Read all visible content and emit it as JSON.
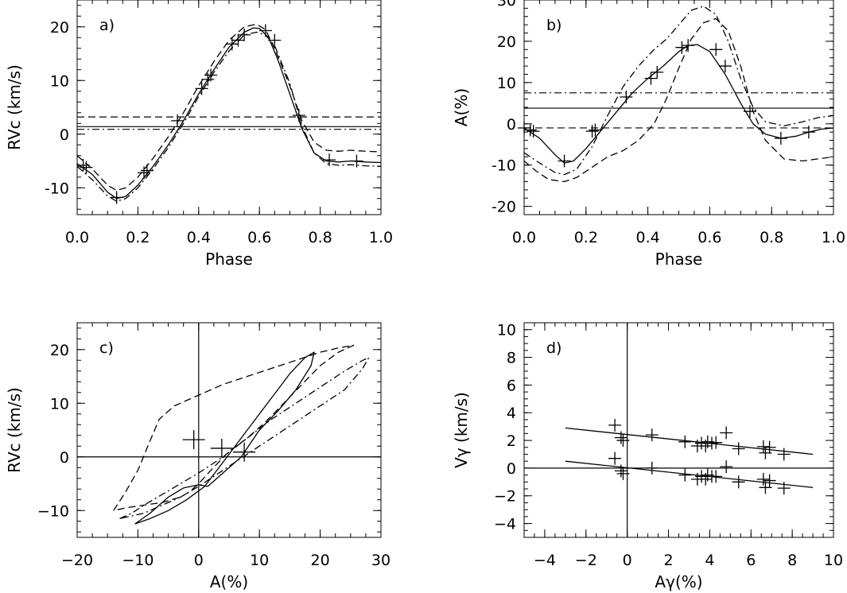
{
  "chart_data": [
    {
      "panel": "a)",
      "type": "line",
      "xlabel": "Phase",
      "ylabel": "RVc (km/s)",
      "xlim": [
        0.0,
        1.0
      ],
      "ylim": [
        -15,
        25
      ],
      "xticks": [
        "0.0",
        "0.2",
        "0.4",
        "0.6",
        "0.8",
        "1.0"
      ],
      "xtick_values": [
        0,
        0.2,
        0.4,
        0.6,
        0.8,
        1.0
      ],
      "yticks": [
        "-10",
        "0",
        "10",
        "20"
      ],
      "ytick_values": [
        -10,
        0,
        10,
        20
      ],
      "series": [
        {
          "style": "solid",
          "x": [
            0.0,
            0.05,
            0.1,
            0.13,
            0.16,
            0.2,
            0.25,
            0.3,
            0.35,
            0.4,
            0.45,
            0.5,
            0.55,
            0.58,
            0.6,
            0.63,
            0.66,
            0.7,
            0.74,
            0.78,
            0.82,
            0.86,
            0.9,
            0.95,
            1.0
          ],
          "y": [
            -5.5,
            -7.5,
            -10.8,
            -12,
            -11.6,
            -9.5,
            -6,
            -2,
            2.5,
            7.5,
            12,
            16.2,
            19,
            19.8,
            19.7,
            18,
            14,
            7.5,
            1,
            -3.5,
            -5,
            -5.2,
            -5,
            -5.2,
            -5.3
          ]
        },
        {
          "style": "dashed",
          "x": [
            0.0,
            0.05,
            0.1,
            0.13,
            0.16,
            0.2,
            0.25,
            0.3,
            0.35,
            0.4,
            0.45,
            0.5,
            0.55,
            0.59,
            0.62,
            0.65,
            0.7,
            0.74,
            0.78,
            0.82,
            0.86,
            0.9,
            0.95,
            1.0
          ],
          "y": [
            -4,
            -6.5,
            -9.5,
            -10.5,
            -10,
            -8,
            -4.5,
            -0.5,
            4,
            9,
            13.5,
            17.5,
            20,
            20.5,
            19.5,
            16,
            9,
            2.5,
            -1.5,
            -3,
            -3.2,
            -3,
            -3.2,
            -3.3
          ]
        },
        {
          "style": "dashdot",
          "x": [
            0.0,
            0.05,
            0.1,
            0.13,
            0.16,
            0.2,
            0.25,
            0.3,
            0.35,
            0.4,
            0.45,
            0.5,
            0.55,
            0.59,
            0.62,
            0.65,
            0.7,
            0.74,
            0.78,
            0.82,
            0.86,
            0.9,
            0.95,
            1.0
          ],
          "y": [
            -6,
            -8.5,
            -11.5,
            -12.5,
            -12,
            -10,
            -6.5,
            -2.5,
            2,
            7,
            11.5,
            15.5,
            18.5,
            19,
            18.5,
            16.5,
            9.5,
            1.5,
            -3.5,
            -5.5,
            -5.8,
            -5.7,
            -5.9,
            -6
          ]
        },
        {
          "style": "hline-dashed",
          "y": 3.2
        },
        {
          "style": "hline-solid",
          "y": 1.4
        },
        {
          "style": "hline-dashdot",
          "y": 0.9
        }
      ],
      "points": [
        {
          "x": 0.02,
          "y": -5.8
        },
        {
          "x": 0.03,
          "y": -6.2
        },
        {
          "x": 0.13,
          "y": -11.8
        },
        {
          "x": 0.22,
          "y": -7.2
        },
        {
          "x": 0.23,
          "y": -6.8
        },
        {
          "x": 0.33,
          "y": 2.5
        },
        {
          "x": 0.41,
          "y": 8.5
        },
        {
          "x": 0.43,
          "y": 10.2
        },
        {
          "x": 0.44,
          "y": 11
        },
        {
          "x": 0.51,
          "y": 16.8
        },
        {
          "x": 0.53,
          "y": 17.5
        },
        {
          "x": 0.55,
          "y": 18.5
        },
        {
          "x": 0.62,
          "y": 19.3
        },
        {
          "x": 0.65,
          "y": 17.5
        },
        {
          "x": 0.73,
          "y": 3.5
        },
        {
          "x": 0.83,
          "y": -4.8
        },
        {
          "x": 0.92,
          "y": -5
        }
      ]
    },
    {
      "panel": "b)",
      "type": "line",
      "xlabel": "Phase",
      "ylabel": "A(%)",
      "xlim": [
        0.0,
        1.0
      ],
      "ylim": [
        -22,
        30
      ],
      "xticks": [
        "0.0",
        "0.2",
        "0.4",
        "0.6",
        "0.8",
        "1.0"
      ],
      "xtick_values": [
        0,
        0.2,
        0.4,
        0.6,
        0.8,
        1.0
      ],
      "yticks": [
        "-20",
        "-10",
        "0",
        "10",
        "20",
        "30"
      ],
      "ytick_values": [
        -20,
        -10,
        0,
        10,
        20,
        30
      ],
      "series": [
        {
          "style": "solid",
          "x": [
            0.0,
            0.05,
            0.1,
            0.13,
            0.16,
            0.2,
            0.25,
            0.3,
            0.35,
            0.4,
            0.45,
            0.5,
            0.53,
            0.56,
            0.6,
            0.65,
            0.7,
            0.74,
            0.78,
            0.83,
            0.88,
            0.92,
            0.96,
            1.0
          ],
          "y": [
            -1,
            -3.5,
            -7.5,
            -9.5,
            -9,
            -6,
            -1.5,
            3,
            7.5,
            11,
            14,
            17.5,
            19,
            19.2,
            17.5,
            12,
            5,
            0,
            -2.5,
            -3.5,
            -3,
            -2,
            -1.3,
            -1
          ]
        },
        {
          "style": "dashed",
          "x": [
            0.0,
            0.04,
            0.08,
            0.13,
            0.17,
            0.22,
            0.27,
            0.32,
            0.37,
            0.42,
            0.46,
            0.5,
            0.54,
            0.58,
            0.62,
            0.66,
            0.7,
            0.74,
            0.78,
            0.84,
            0.9,
            0.95,
            1.0
          ],
          "y": [
            -9,
            -11.5,
            -13.5,
            -14,
            -13,
            -10.5,
            -8,
            -6.5,
            -4,
            0,
            6,
            13.5,
            20.5,
            24.5,
            25.5,
            22.5,
            14,
            3,
            -4,
            -8.5,
            -9,
            -8.5,
            -8
          ]
        },
        {
          "style": "dashdot",
          "x": [
            0.0,
            0.05,
            0.1,
            0.13,
            0.17,
            0.22,
            0.27,
            0.32,
            0.37,
            0.42,
            0.46,
            0.5,
            0.54,
            0.58,
            0.62,
            0.66,
            0.7,
            0.74,
            0.78,
            0.84,
            0.9,
            0.95,
            1.0
          ],
          "y": [
            -7,
            -9.5,
            -11.8,
            -12.3,
            -11,
            -5.5,
            2,
            9,
            14,
            18,
            20.5,
            24,
            27.5,
            28.5,
            26.5,
            20,
            11,
            4,
            0.5,
            -0.5,
            0.5,
            1.5,
            2
          ]
        },
        {
          "style": "hline-dashdot",
          "y": 7.5
        },
        {
          "style": "hline-solid",
          "y": 3.8
        },
        {
          "style": "hline-dashed",
          "y": -1
        }
      ],
      "points": [
        {
          "x": 0.0,
          "y": -1
        },
        {
          "x": 0.02,
          "y": -1.5
        },
        {
          "x": 0.03,
          "y": -1.8
        },
        {
          "x": 0.13,
          "y": -9
        },
        {
          "x": 0.22,
          "y": -1.8
        },
        {
          "x": 0.23,
          "y": -1.5
        },
        {
          "x": 0.33,
          "y": 6.5
        },
        {
          "x": 0.41,
          "y": 11
        },
        {
          "x": 0.43,
          "y": 12.5
        },
        {
          "x": 0.51,
          "y": 18.5
        },
        {
          "x": 0.53,
          "y": 19
        },
        {
          "x": 0.62,
          "y": 18
        },
        {
          "x": 0.65,
          "y": 14
        },
        {
          "x": 0.73,
          "y": 3
        },
        {
          "x": 0.83,
          "y": -3.5
        },
        {
          "x": 0.92,
          "y": -2
        }
      ]
    },
    {
      "panel": "c)",
      "type": "line",
      "xlabel": "A(%)",
      "ylabel": "RVc (km/s)",
      "xlim": [
        -20,
        30
      ],
      "ylim": [
        -15,
        25
      ],
      "xticks": [
        "−20",
        "−10",
        "0",
        "10",
        "20",
        "30"
      ],
      "xtick_values": [
        -20,
        -10,
        0,
        10,
        20,
        30
      ],
      "yticks": [
        "−10",
        "0",
        "10",
        "20"
      ],
      "ytick_values": [
        -10,
        0,
        10,
        20
      ],
      "series": [
        {
          "style": "solid",
          "x": [
            -10.5,
            -8,
            -5,
            -2,
            1,
            4,
            8,
            12,
            15,
            17.5,
            19,
            18.5,
            16,
            13,
            10,
            7,
            4,
            2,
            1.5,
            0,
            -2.5,
            -5,
            -8,
            -10.5
          ],
          "y": [
            -12.5,
            -11.5,
            -10,
            -8,
            -5.5,
            -1,
            5,
            11,
            15.5,
            18.5,
            19.5,
            17,
            12.5,
            8.5,
            5,
            0,
            -3,
            -5,
            -5.5,
            -5.2,
            -5.8,
            -7.5,
            -10.5,
            -12.5
          ]
        },
        {
          "style": "dashed",
          "x": [
            -14,
            -12,
            -10,
            -8,
            -6.5,
            -4,
            0,
            4,
            8,
            12,
            16,
            20,
            23,
            25.5,
            23,
            20,
            17,
            14,
            11,
            8,
            5,
            2,
            0,
            -1.5,
            -3,
            -6,
            -9,
            -12,
            -14
          ],
          "y": [
            -10,
            -6.5,
            -2.5,
            3,
            7,
            9.5,
            11.5,
            13.5,
            15,
            16.5,
            18,
            19.5,
            20.3,
            20.8,
            19.5,
            17,
            13.5,
            10,
            6.5,
            3.5,
            1,
            -2.5,
            -5,
            -6.5,
            -7.5,
            -8.5,
            -9,
            -9.5,
            -10
          ]
        },
        {
          "style": "dashdot",
          "x": [
            -13,
            -11,
            -9,
            -6,
            -3,
            0,
            4,
            8,
            12,
            16,
            20,
            24,
            27,
            28,
            27,
            24,
            20,
            16,
            12,
            8,
            4,
            0,
            -3,
            -6,
            -9,
            -11,
            -13
          ],
          "y": [
            -11.5,
            -10.5,
            -9,
            -7,
            -5,
            -3,
            0,
            3.5,
            7,
            10,
            13,
            16,
            18,
            18.5,
            16.5,
            12.5,
            9.5,
            6.5,
            3.5,
            0.5,
            -2.5,
            -5.5,
            -7.5,
            -9,
            -10.5,
            -11,
            -11.5
          ]
        },
        {
          "style": "vline-solid",
          "x": 0
        },
        {
          "style": "hline-solid",
          "y": 0
        }
      ],
      "points": [
        {
          "x": -0.8,
          "y": 3.2,
          "size": "large"
        },
        {
          "x": 3.8,
          "y": 1.6,
          "size": "large"
        },
        {
          "x": 7.5,
          "y": 0.9,
          "size": "large"
        }
      ]
    },
    {
      "panel": "d)",
      "type": "scatter",
      "xlabel": "Aγ(%)",
      "ylabel": "Vγ (km/s)",
      "xlim": [
        -5,
        10
      ],
      "ylim": [
        -5,
        10.5
      ],
      "xticks": [
        "−4",
        "−2",
        "0",
        "2",
        "4",
        "6",
        "8",
        "10"
      ],
      "xtick_values": [
        -4,
        -2,
        0,
        2,
        4,
        6,
        8,
        10
      ],
      "yticks": [
        "−4",
        "−2",
        "0",
        "2",
        "4",
        "6",
        "8",
        "10"
      ],
      "ytick_values": [
        -4,
        -2,
        0,
        2,
        4,
        6,
        8,
        10
      ],
      "series": [
        {
          "style": "solid",
          "x": [
            -3,
            9
          ],
          "y": [
            2.9,
            1.0
          ]
        },
        {
          "style": "solid",
          "x": [
            -3,
            9
          ],
          "y": [
            0.5,
            -1.4
          ]
        },
        {
          "style": "vline-solid",
          "x": 0
        },
        {
          "style": "hline-solid",
          "y": 0
        }
      ],
      "points": [
        {
          "x": -0.6,
          "y": 3.1
        },
        {
          "x": -0.3,
          "y": 2.2
        },
        {
          "x": -0.2,
          "y": 2.0
        },
        {
          "x": 1.2,
          "y": 2.4
        },
        {
          "x": 2.8,
          "y": 1.9
        },
        {
          "x": 3.4,
          "y": 1.6
        },
        {
          "x": 3.6,
          "y": 1.8
        },
        {
          "x": 3.8,
          "y": 1.6
        },
        {
          "x": 3.9,
          "y": 1.9
        },
        {
          "x": 4.1,
          "y": 1.8
        },
        {
          "x": 4.3,
          "y": 1.85
        },
        {
          "x": 4.8,
          "y": 2.55
        },
        {
          "x": 5.4,
          "y": 1.4
        },
        {
          "x": 6.6,
          "y": 1.55
        },
        {
          "x": 6.7,
          "y": 1.1
        },
        {
          "x": 6.9,
          "y": 1.5
        },
        {
          "x": 7.6,
          "y": 1.0
        },
        {
          "x": -0.6,
          "y": 0.7
        },
        {
          "x": -0.3,
          "y": -0.2
        },
        {
          "x": -0.2,
          "y": -0.4
        },
        {
          "x": 1.2,
          "y": 0.0
        },
        {
          "x": 2.8,
          "y": -0.5
        },
        {
          "x": 3.4,
          "y": -0.8
        },
        {
          "x": 3.6,
          "y": -0.6
        },
        {
          "x": 3.8,
          "y": -0.8
        },
        {
          "x": 3.9,
          "y": -0.5
        },
        {
          "x": 4.1,
          "y": -0.6
        },
        {
          "x": 4.3,
          "y": -0.6
        },
        {
          "x": 4.8,
          "y": 0.1
        },
        {
          "x": 5.4,
          "y": -1.0
        },
        {
          "x": 6.6,
          "y": -0.8
        },
        {
          "x": 6.7,
          "y": -1.4
        },
        {
          "x": 6.9,
          "y": -0.9
        },
        {
          "x": 7.6,
          "y": -1.45
        }
      ]
    }
  ]
}
